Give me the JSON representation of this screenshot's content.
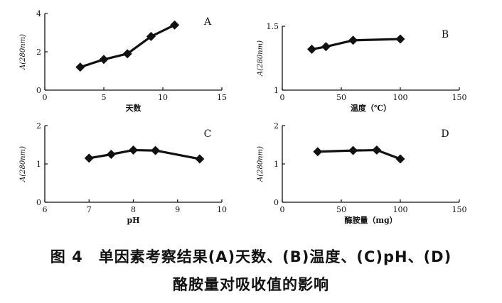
{
  "chart_data": [
    {
      "type": "line",
      "panel_letter": "A",
      "xlabel": "天数",
      "ylabel": "A(280nm)",
      "xlim": [
        0,
        15
      ],
      "ylim": [
        0,
        4
      ],
      "xticks": [
        "0",
        "5",
        "10",
        "15"
      ],
      "yticks": [
        "0",
        "2",
        "4"
      ],
      "grid": false,
      "series": [
        {
          "x": [
            3,
            5,
            7,
            9,
            11
          ],
          "values": [
            1.2,
            1.6,
            1.9,
            2.8,
            3.4
          ]
        }
      ]
    },
    {
      "type": "line",
      "panel_letter": "B",
      "xlabel": "温度（℃）",
      "ylabel": "A(280nm)",
      "xlim": [
        0,
        150
      ],
      "ylim": [
        1,
        1.5
      ],
      "xticks": [
        "0",
        "50",
        "100",
        "150"
      ],
      "yticks": [
        "1",
        "1.5"
      ],
      "grid": false,
      "series": [
        {
          "x": [
            25,
            37,
            60,
            100
          ],
          "values": [
            1.32,
            1.34,
            1.39,
            1.4
          ]
        }
      ]
    },
    {
      "type": "line",
      "panel_letter": "C",
      "xlabel": "pH",
      "ylabel": "A(280nm)",
      "xlim": [
        6,
        10
      ],
      "ylim": [
        0,
        2
      ],
      "xticks": [
        "6",
        "7",
        "8",
        "9",
        "10"
      ],
      "yticks": [
        "0",
        "1",
        "2"
      ],
      "grid": false,
      "series": [
        {
          "x": [
            7,
            7.5,
            8,
            8.5,
            9.5
          ],
          "values": [
            1.15,
            1.25,
            1.36,
            1.35,
            1.13
          ]
        }
      ]
    },
    {
      "type": "line",
      "panel_letter": "D",
      "xlabel": "酶胺量（mg）",
      "ylabel": "A(280nm)",
      "xlim": [
        0,
        150
      ],
      "ylim": [
        0,
        2
      ],
      "xticks": [
        "0",
        "50",
        "100",
        "150"
      ],
      "yticks": [
        "0",
        "1",
        "2"
      ],
      "grid": false,
      "series": [
        {
          "x": [
            30,
            60,
            80,
            100
          ],
          "values": [
            1.32,
            1.35,
            1.36,
            1.13
          ]
        }
      ]
    }
  ],
  "caption": {
    "line1": "图 4　单因素考察结果(A)天数、(B)温度、(C)pH、(D)",
    "line2": "酪胺量对吸收值的影响"
  },
  "colors": {
    "ink": "#111111"
  }
}
